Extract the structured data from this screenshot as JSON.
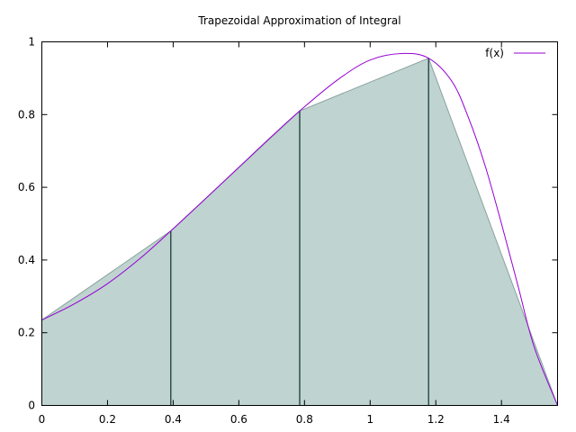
{
  "chart_data": {
    "type": "area",
    "title": "Trapezoidal Approximation of Integral",
    "xlabel": "",
    "ylabel": "",
    "xlim": [
      0,
      1.5708
    ],
    "ylim": [
      0,
      1
    ],
    "xticks": [
      "0",
      "0.2",
      "0.4",
      "0.6",
      "0.8",
      "1",
      "1.2",
      "1.4"
    ],
    "xtick_values": [
      0,
      0.2,
      0.4,
      0.6,
      0.8,
      1.0,
      1.2,
      1.4
    ],
    "yticks": [
      "0",
      "0.2",
      "0.4",
      "0.6",
      "0.8",
      "1"
    ],
    "ytick_values": [
      0,
      0.2,
      0.4,
      0.6,
      0.8,
      1.0
    ],
    "legend_position": "top-right",
    "series": [
      {
        "name": "f(x)",
        "color": "#9400d3",
        "x": [
          0,
          0.1,
          0.2,
          0.3,
          0.3927,
          0.5,
          0.6,
          0.7,
          0.7854,
          0.9,
          1.0,
          1.1,
          1.1781,
          1.25,
          1.3,
          1.35,
          1.4,
          1.45,
          1.5,
          1.5708
        ],
        "y": [
          0.235,
          0.28,
          0.335,
          0.405,
          0.48,
          0.57,
          0.655,
          0.74,
          0.81,
          0.895,
          0.95,
          0.968,
          0.955,
          0.89,
          0.79,
          0.66,
          0.5,
          0.33,
          0.16,
          0.0
        ]
      }
    ],
    "trapezoids": {
      "fill": "#bfd3d0",
      "edge_color": "#8aa39e",
      "divider_color": "#2f4f4f",
      "x": [
        0,
        0.3927,
        0.7854,
        1.1781,
        1.5708
      ],
      "y": [
        0.235,
        0.48,
        0.81,
        0.955,
        0.0
      ]
    }
  }
}
